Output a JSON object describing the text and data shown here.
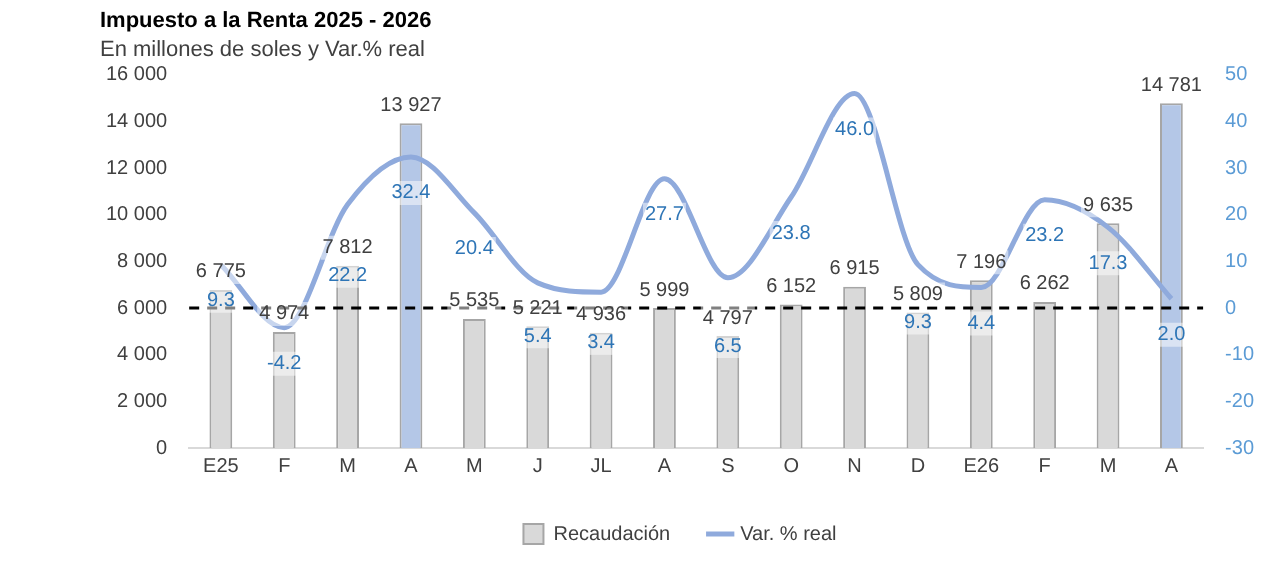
{
  "chart_data": {
    "type": "bar",
    "title": "Impuesto a la Renta 2025 - 2026",
    "subtitle": "En millones de soles y Var.% real",
    "categories": [
      "E25",
      "F",
      "M",
      "A",
      "M",
      "J",
      "JL",
      "A",
      "S",
      "O",
      "N",
      "D",
      "E26",
      "F",
      "M",
      "A"
    ],
    "series": [
      {
        "name": "Recaudación",
        "colors": [
          "#d9d9d9",
          "#d9d9d9",
          "#d9d9d9",
          "#b4c7e7",
          "#d9d9d9",
          "#d9d9d9",
          "#d9d9d9",
          "#d9d9d9",
          "#d9d9d9",
          "#d9d9d9",
          "#d9d9d9",
          "#d9d9d9",
          "#d9d9d9",
          "#d9d9d9",
          "#d9d9d9",
          "#b4c7e7"
        ],
        "values": [
          6775,
          4974,
          7812,
          13927,
          5535,
          5221,
          4936,
          5999,
          4797,
          6152,
          6915,
          5809,
          7196,
          6262,
          9635,
          14781
        ],
        "value_labels": [
          "6 775",
          "4 974",
          "7 812",
          "13 927",
          "5 535",
          "5 221",
          "4 936",
          "5 999",
          "4 797",
          "6 152",
          "6 915",
          "5 809",
          "7 196",
          "6 262",
          "9 635",
          "14 781"
        ]
      },
      {
        "name": "Var. % real",
        "type": "line",
        "axis": "y2",
        "color": "#8faadc",
        "values": [
          9.3,
          -4.2,
          22.2,
          32.4,
          20.4,
          5.4,
          3.4,
          27.7,
          6.5,
          23.8,
          46.0,
          9.3,
          4.4,
          23.2,
          17.3,
          2.0
        ],
        "value_labels": [
          "9.3",
          "-4.2",
          "22.2",
          "32.4",
          "20.4",
          "5.4",
          "3.4",
          "27.7",
          "6.5",
          "23.8",
          "46.0",
          "9.3",
          "4.4",
          "23.2",
          "17.3",
          "2.0"
        ]
      }
    ],
    "ylim": [
      0,
      16000
    ],
    "yticks": [
      {
        "value": 0,
        "label": "0"
      },
      {
        "value": 2000,
        "label": "2 000"
      },
      {
        "value": 4000,
        "label": "4 000"
      },
      {
        "value": 6000,
        "label": "6 000"
      },
      {
        "value": 8000,
        "label": "8 000"
      },
      {
        "value": 10000,
        "label": "10 000"
      },
      {
        "value": 12000,
        "label": "12 000"
      },
      {
        "value": 14000,
        "label": "14 000"
      },
      {
        "value": 16000,
        "label": "16 000"
      }
    ],
    "y2lim": [
      -30,
      50
    ],
    "y2ticks": [
      -30,
      -20,
      -10,
      0,
      10,
      20,
      30,
      40,
      50
    ],
    "ref_lines": [
      {
        "axis": "y2",
        "value": 0,
        "color": "#000000",
        "line_style": "dashed"
      }
    ],
    "legend": "bottom",
    "grid": false,
    "marker": "none"
  }
}
